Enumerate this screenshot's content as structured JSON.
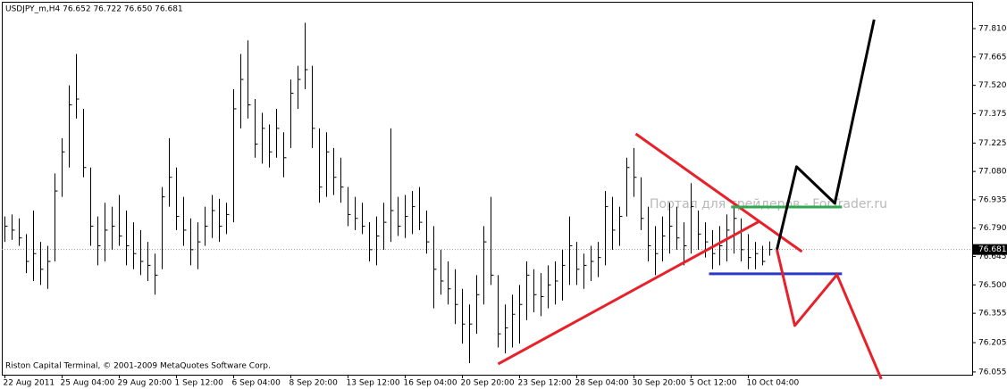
{
  "chart_data": {
    "type": "ohlc",
    "title": "USDJPY_m,H4  76.652 76.722 76.650 76.681",
    "footer": "Riston Capital Terminal, © 2001-2009 MetaQuotes Software Corp.",
    "watermark": "Портал для трейдеров - ForTrader.ru",
    "color": "#000000",
    "ylim": [
      76.041,
      77.947
    ],
    "yticks": [
      {
        "value": 77.81,
        "label": "77.810"
      },
      77.665,
      {
        "value": 77.52,
        "label": "77.520"
      },
      77.375,
      77.225,
      {
        "value": 77.08,
        "label": "77.080"
      },
      76.935,
      {
        "value": 76.79,
        "label": "76.790"
      },
      76.645,
      {
        "value": 76.5,
        "label": "76.500"
      },
      76.355,
      76.205,
      76.055
    ],
    "xticks": [
      {
        "value": 0,
        "label": "22 Aug 2011"
      },
      {
        "value": 8,
        "label": "25 Aug 04:00"
      },
      {
        "value": 16,
        "label": "29 Aug 20:00"
      },
      {
        "value": 24,
        "label": "1 Sep 12:00"
      },
      {
        "value": 32,
        "label": "6 Sep 04:00"
      },
      {
        "value": 40,
        "label": "8 Sep 20:00"
      },
      {
        "value": 48,
        "label": "13 Sep 12:00"
      },
      {
        "value": 56,
        "label": "16 Sep 04:00"
      },
      {
        "value": 64,
        "label": "20 Sep 20:00"
      },
      {
        "value": 72,
        "label": "23 Sep 12:00"
      },
      {
        "value": 80,
        "label": "28 Sep 04:00"
      },
      {
        "value": 88,
        "label": "30 Sep 20:00"
      },
      {
        "value": 96,
        "label": "5 Oct 12:00"
      },
      {
        "value": 104,
        "label": "10 Oct 04:00"
      }
    ],
    "current_price": 76.681,
    "current_price_color": "#000000",
    "high": [
      76.85,
      76.86,
      76.84,
      76.76,
      76.88,
      76.72,
      76.7,
      77.07,
      77.25,
      77.52,
      77.68,
      77.4,
      77.1,
      76.85,
      76.92,
      76.9,
      76.96,
      76.88,
      76.82,
      76.78,
      76.72,
      76.66,
      77.0,
      77.25,
      77.1,
      76.95,
      76.84,
      76.82,
      76.9,
      76.96,
      76.94,
      76.92,
      77.5,
      77.68,
      77.75,
      77.45,
      77.38,
      77.32,
      77.4,
      77.28,
      77.55,
      77.62,
      77.84,
      77.62,
      77.3,
      77.28,
      77.2,
      77.15,
      77.0,
      76.95,
      76.92,
      76.82,
      76.85,
      76.92,
      77.3,
      76.95,
      76.96,
      76.98,
      77.0,
      76.88,
      76.8,
      76.68,
      76.62,
      76.58,
      76.48,
      76.4,
      76.55,
      76.8,
      76.95,
      76.55,
      76.4,
      76.45,
      76.5,
      76.62,
      76.58,
      76.56,
      76.6,
      76.62,
      76.68,
      76.85,
      76.72,
      76.66,
      76.7,
      76.72,
      76.98,
      76.95,
      76.9,
      77.15,
      77.2,
      77.05,
      76.9,
      76.8,
      76.85,
      76.92,
      76.9,
      76.82,
      77.02,
      76.88,
      76.82,
      76.78,
      76.8,
      76.86,
      76.9,
      76.84,
      76.76,
      76.72,
      76.7,
      76.722
    ],
    "low": [
      76.72,
      76.73,
      76.7,
      76.56,
      76.52,
      76.5,
      76.48,
      76.62,
      76.95,
      77.1,
      77.35,
      77.05,
      76.7,
      76.6,
      76.62,
      76.68,
      76.7,
      76.6,
      76.58,
      76.55,
      76.52,
      76.45,
      76.58,
      76.9,
      76.78,
      76.7,
      76.6,
      76.58,
      76.7,
      76.74,
      76.72,
      76.76,
      76.82,
      77.3,
      77.35,
      77.15,
      77.12,
      77.1,
      77.15,
      77.05,
      77.2,
      77.4,
      77.5,
      77.2,
      76.92,
      76.95,
      76.96,
      76.92,
      76.8,
      76.78,
      76.76,
      76.62,
      76.6,
      76.68,
      76.72,
      76.75,
      76.74,
      76.76,
      76.78,
      76.66,
      76.38,
      76.45,
      76.4,
      76.3,
      76.2,
      76.1,
      76.25,
      76.4,
      76.5,
      76.18,
      76.15,
      76.18,
      76.2,
      76.32,
      76.36,
      76.34,
      76.38,
      76.4,
      76.42,
      76.5,
      76.5,
      76.48,
      76.52,
      76.54,
      76.6,
      76.68,
      76.7,
      76.85,
      76.95,
      76.78,
      76.62,
      76.55,
      76.62,
      76.66,
      76.68,
      76.6,
      76.66,
      76.68,
      76.64,
      76.58,
      76.6,
      76.62,
      76.66,
      76.62,
      76.58,
      76.58,
      76.6,
      76.65
    ],
    "close": [
      76.8,
      76.78,
      76.74,
      76.62,
      76.66,
      76.58,
      76.62,
      76.98,
      77.18,
      77.42,
      77.45,
      77.1,
      76.8,
      76.7,
      76.78,
      76.8,
      76.75,
      76.7,
      76.66,
      76.62,
      76.6,
      76.55,
      76.95,
      77.05,
      76.85,
      76.78,
      76.68,
      76.72,
      76.8,
      76.88,
      76.8,
      76.86,
      77.4,
      77.55,
      77.42,
      77.22,
      77.3,
      77.18,
      77.3,
      77.15,
      77.48,
      77.55,
      77.6,
      77.3,
      77.0,
      77.18,
      77.05,
      77.0,
      76.86,
      76.84,
      76.8,
      76.68,
      76.75,
      76.82,
      76.88,
      76.8,
      76.85,
      76.9,
      76.82,
      76.72,
      76.58,
      76.52,
      76.48,
      76.4,
      76.3,
      76.3,
      76.45,
      76.72,
      76.55,
      76.25,
      76.28,
      76.35,
      76.4,
      76.55,
      76.45,
      76.44,
      76.5,
      76.52,
      76.6,
      76.7,
      76.58,
      76.6,
      76.62,
      76.64,
      76.9,
      76.78,
      76.85,
      77.1,
      77.05,
      76.84,
      76.7,
      76.66,
      76.75,
      76.8,
      76.74,
      76.7,
      76.9,
      76.76,
      76.72,
      76.66,
      76.7,
      76.78,
      76.84,
      76.68,
      76.64,
      76.66,
      76.62,
      76.681
    ],
    "drawings": [
      {
        "color": "#e8202a",
        "points": [
          [
            69,
            76.096
          ],
          [
            105.6,
            76.826
          ]
        ]
      },
      {
        "color": "#e8202a",
        "points": [
          [
            88.25,
            77.272
          ],
          [
            111.5,
            76.67
          ]
        ]
      },
      {
        "color": "#2fa84f",
        "points": [
          [
            101.6,
            76.898
          ],
          [
            117.1,
            76.898
          ]
        ]
      },
      {
        "color": "#2838c8",
        "points": [
          [
            98.5,
            76.557
          ],
          [
            117.1,
            76.557
          ]
        ]
      },
      {
        "color": "#000000",
        "points": [
          [
            108,
            76.68
          ],
          [
            110.75,
            77.104
          ],
          [
            116.1,
            76.917
          ],
          [
            121.6,
            77.856
          ]
        ]
      },
      {
        "color": "#e8202a",
        "points": [
          [
            108,
            76.68
          ],
          [
            110.5,
            76.292
          ],
          [
            116.4,
            76.552
          ],
          [
            122.6,
            76.019
          ]
        ]
      }
    ]
  }
}
